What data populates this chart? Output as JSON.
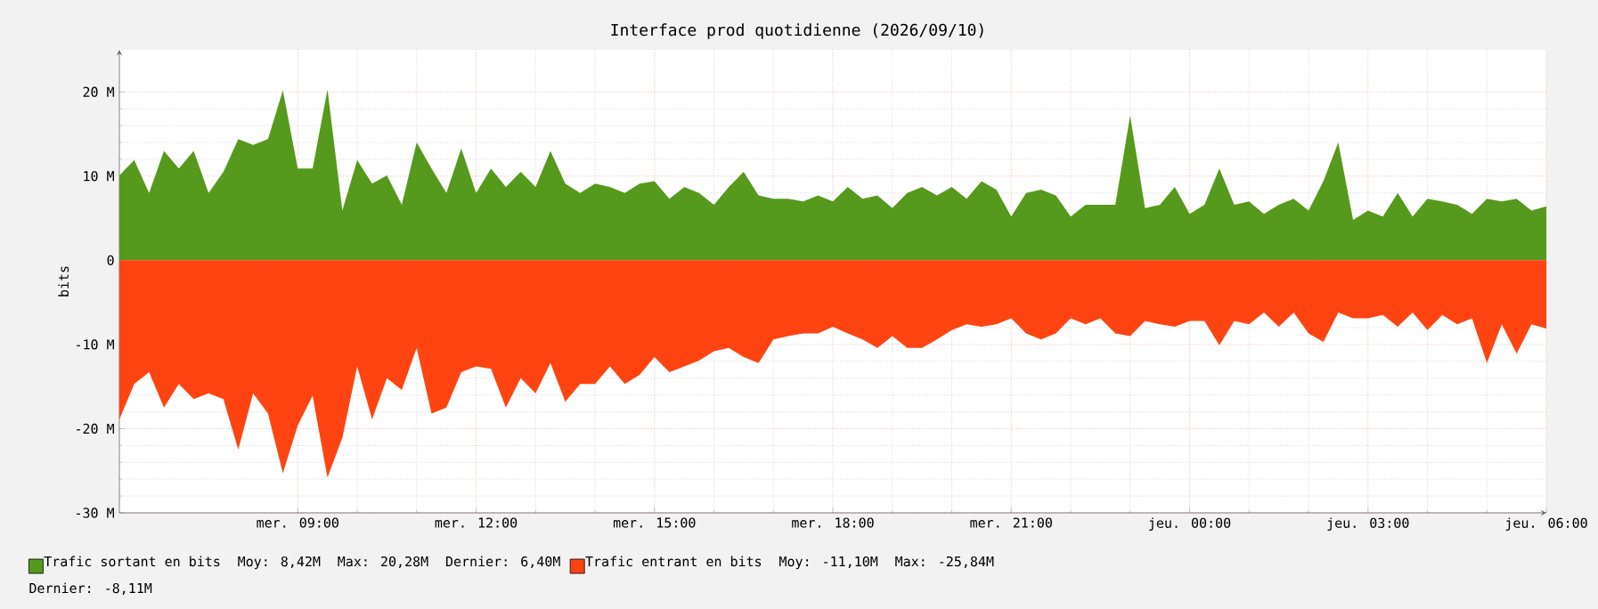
{
  "chart_data": {
    "type": "area",
    "title": "Interface prod quotidienne (2026/09/10)",
    "ylabel": "bits",
    "x": [
      "2026-09-09T06:00",
      "2026-09-09T06:15",
      "2026-09-09T06:30",
      "2026-09-09T06:45",
      "2026-09-09T07:00",
      "2026-09-09T07:15",
      "2026-09-09T07:30",
      "2026-09-09T07:45",
      "2026-09-09T08:00",
      "2026-09-09T08:15",
      "2026-09-09T08:30",
      "2026-09-09T08:45",
      "2026-09-09T09:00",
      "2026-09-09T09:15",
      "2026-09-09T09:30",
      "2026-09-09T09:45",
      "2026-09-09T10:00",
      "2026-09-09T10:15",
      "2026-09-09T10:30",
      "2026-09-09T10:45",
      "2026-09-09T11:00",
      "2026-09-09T11:15",
      "2026-09-09T11:30",
      "2026-09-09T11:45",
      "2026-09-09T12:00",
      "2026-09-09T12:15",
      "2026-09-09T12:30",
      "2026-09-09T12:45",
      "2026-09-09T13:00",
      "2026-09-09T13:15",
      "2026-09-09T13:30",
      "2026-09-09T13:45",
      "2026-09-09T14:00",
      "2026-09-09T14:15",
      "2026-09-09T14:30",
      "2026-09-09T14:45",
      "2026-09-09T15:00",
      "2026-09-09T15:15",
      "2026-09-09T15:30",
      "2026-09-09T15:45",
      "2026-09-09T16:00",
      "2026-09-09T16:15",
      "2026-09-09T16:30",
      "2026-09-09T16:45",
      "2026-09-09T17:00",
      "2026-09-09T17:15",
      "2026-09-09T17:30",
      "2026-09-09T17:45",
      "2026-09-09T18:00",
      "2026-09-09T18:15",
      "2026-09-09T18:30",
      "2026-09-09T18:45",
      "2026-09-09T19:00",
      "2026-09-09T19:15",
      "2026-09-09T19:30",
      "2026-09-09T19:45",
      "2026-09-09T20:00",
      "2026-09-09T20:15",
      "2026-09-09T20:30",
      "2026-09-09T20:45",
      "2026-09-09T21:00",
      "2026-09-09T21:15",
      "2026-09-09T21:30",
      "2026-09-09T21:45",
      "2026-09-09T22:00",
      "2026-09-09T22:15",
      "2026-09-09T22:30",
      "2026-09-09T22:45",
      "2026-09-09T23:00",
      "2026-09-09T23:15",
      "2026-09-09T23:30",
      "2026-09-09T23:45",
      "2026-09-10T00:00",
      "2026-09-10T00:15",
      "2026-09-10T00:30",
      "2026-09-10T00:45",
      "2026-09-10T01:00",
      "2026-09-10T01:15",
      "2026-09-10T01:30",
      "2026-09-10T01:45",
      "2026-09-10T02:00",
      "2026-09-10T02:15",
      "2026-09-10T02:30",
      "2026-09-10T02:45",
      "2026-09-10T03:00",
      "2026-09-10T03:15",
      "2026-09-10T03:30",
      "2026-09-10T03:45",
      "2026-09-10T04:00",
      "2026-09-10T04:15",
      "2026-09-10T04:30",
      "2026-09-10T04:45",
      "2026-09-10T05:00",
      "2026-09-10T05:15",
      "2026-09-10T05:30",
      "2026-09-10T05:45",
      "2026-09-10T06:00"
    ],
    "series": [
      {
        "name": "Trafic sortant en bits",
        "color": "#559a1c",
        "values": [
          10.1,
          11.9,
          8.0,
          13,
          10.9,
          13,
          8,
          10.5,
          14.4,
          13.7,
          14.4,
          20.2,
          10.9,
          10.9,
          20.3,
          5.9,
          11.9,
          9.1,
          10.1,
          6.6,
          14,
          10.9,
          8,
          13.3,
          8,
          10.9,
          8.7,
          10.5,
          8.7,
          13,
          9.1,
          8,
          9.1,
          8.7,
          8,
          9.1,
          9.4,
          7.3,
          8.7,
          8,
          6.6,
          8.7,
          10.5,
          7.7,
          7.3,
          7.3,
          7,
          7.7,
          7,
          8.7,
          7.3,
          7.7,
          6.2,
          8,
          8.7,
          7.7,
          8.7,
          7.3,
          9.4,
          8.4,
          5.2,
          8,
          8.4,
          7.7,
          5.2,
          6.6,
          6.6,
          6.6,
          17.2,
          6.2,
          6.6,
          8.7,
          5.5,
          6.6,
          10.9,
          6.6,
          7,
          5.5,
          6.6,
          7.3,
          5.9,
          9.4,
          14,
          4.8,
          5.9,
          5.2,
          8,
          5.2,
          7.3,
          7,
          6.6,
          5.5,
          7.3,
          7,
          7.3,
          5.9,
          6.4
        ]
      },
      {
        "name": "Trafic entrant en bits",
        "color": "#ff4411",
        "values": [
          -18.9,
          -14.7,
          -13.3,
          -17.5,
          -14.7,
          -16.5,
          -15.8,
          -16.5,
          -22.5,
          -15.8,
          -18.2,
          -25.3,
          -19.6,
          -16.1,
          -25.8,
          -21.1,
          -12.6,
          -18.9,
          -14,
          -15.4,
          -10.4,
          -18.2,
          -17.5,
          -13.3,
          -12.6,
          -12.9,
          -17.5,
          -14,
          -15.8,
          -12.2,
          -16.8,
          -14.7,
          -14.7,
          -12.6,
          -14.7,
          -13.6,
          -11.5,
          -13.3,
          -12.6,
          -11.9,
          -10.8,
          -10.4,
          -11.5,
          -12.2,
          -9.4,
          -9,
          -8.7,
          -8.7,
          -7.9,
          -8.7,
          -9.4,
          -10.4,
          -9,
          -10.4,
          -10.4,
          -9.4,
          -8.3,
          -7.6,
          -7.9,
          -7.6,
          -6.9,
          -8.7,
          -9.4,
          -8.7,
          -6.9,
          -7.6,
          -6.9,
          -8.7,
          -9,
          -7.2,
          -7.6,
          -7.9,
          -7.2,
          -7.2,
          -10.1,
          -7.2,
          -7.6,
          -6.2,
          -7.9,
          -6.2,
          -8.7,
          -9.7,
          -6.2,
          -6.9,
          -6.9,
          -6.5,
          -7.9,
          -6.2,
          -8.3,
          -6.5,
          -7.6,
          -6.9,
          -12.2,
          -7.6,
          -11.1,
          -7.6,
          -8.1
        ]
      }
    ],
    "xlim": [
      "2026-09-09T06:00",
      "2026-09-10T06:00"
    ],
    "xticks": [
      {
        "value": "2026-09-09T09:00",
        "label": "mer. 09:00"
      },
      {
        "value": "2026-09-09T12:00",
        "label": "mer. 12:00"
      },
      {
        "value": "2026-09-09T15:00",
        "label": "mer. 15:00"
      },
      {
        "value": "2026-09-09T18:00",
        "label": "mer. 18:00"
      },
      {
        "value": "2026-09-09T21:00",
        "label": "mer. 21:00"
      },
      {
        "value": "2026-09-10T00:00",
        "label": "jeu. 00:00"
      },
      {
        "value": "2026-09-10T03:00",
        "label": "jeu. 03:00"
      },
      {
        "value": "2026-09-10T06:00",
        "label": "jeu. 06:00"
      }
    ],
    "ylim": [
      -30,
      25
    ],
    "yticks": [
      {
        "value": -30,
        "label": "-30 M"
      },
      {
        "value": -20,
        "label": "-20 M"
      },
      {
        "value": -10,
        "label": "-10 M"
      },
      0,
      {
        "value": 10,
        "label": "10 M"
      },
      {
        "value": 20,
        "label": "20 M"
      }
    ],
    "grid": true,
    "legend": "bottom",
    "annotations": [
      "Moy: 8,42M",
      "Max: 20,28M",
      "Dernier: 6,40M",
      "Moy: -11,10M",
      "Max: -25,84M",
      "Dernier: -8,11M"
    ]
  }
}
